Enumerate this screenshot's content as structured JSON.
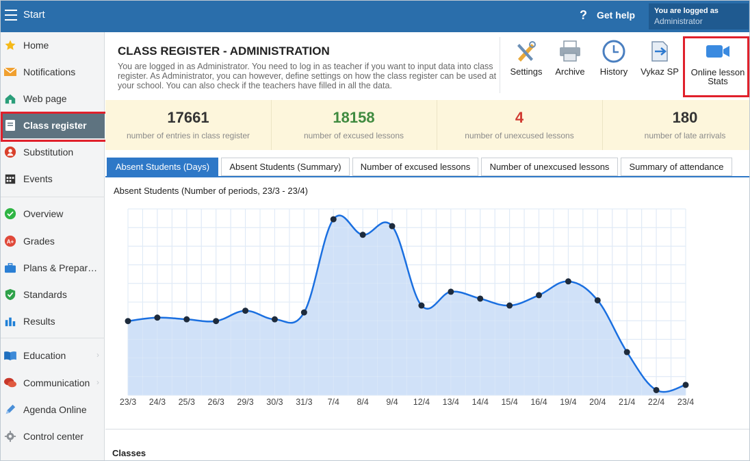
{
  "topbar": {
    "start_label": "Start",
    "help_label": "Get help",
    "logged_line1": "You are logged as",
    "logged_line2": "Administrator"
  },
  "sidebar": {
    "items": [
      {
        "label": "Home",
        "icon": "star-icon"
      },
      {
        "label": "Notifications",
        "icon": "envelope-icon"
      },
      {
        "label": "Web page",
        "icon": "house-icon"
      },
      {
        "label": "Class register",
        "icon": "register-book-icon",
        "active": true
      },
      {
        "label": "Substitution",
        "icon": "person-icon"
      },
      {
        "label": "Events",
        "icon": "calendar-icon"
      },
      {
        "label": "Overview",
        "icon": "check-circle-icon"
      },
      {
        "label": "Grades",
        "icon": "grades-icon"
      },
      {
        "label": "Plans & Prepar…",
        "icon": "briefcase-icon"
      },
      {
        "label": "Standards",
        "icon": "shield-check-icon"
      },
      {
        "label": "Results",
        "icon": "bar-chart-icon"
      },
      {
        "label": "Education",
        "icon": "book-icon"
      },
      {
        "label": "Communication",
        "icon": "chat-icon"
      },
      {
        "label": "Agenda Online",
        "icon": "pen-icon"
      },
      {
        "label": "Control center",
        "icon": "gear-icon"
      }
    ]
  },
  "header": {
    "title": "CLASS REGISTER - ADMINISTRATION",
    "description": "You are logged in as Administrator. You need to log in as teacher if you want to input data into class register. As Administrator, you can however, define settings on how the class register can be used at your school. You can also check if the teachers have filled in all the data."
  },
  "toolbar": {
    "settings": "Settings",
    "archive": "Archive",
    "history": "History",
    "vykaz": "Vykaz SP",
    "online_line1": "Online lesson",
    "online_line2": "Stats"
  },
  "stats": [
    {
      "value": "17661",
      "label": "number of entries in class register",
      "color": "#333333"
    },
    {
      "value": "18158",
      "label": "number of excused lessons",
      "color": "#3f8a3f"
    },
    {
      "value": "4",
      "label": "number of unexcused lessons",
      "color": "#d13b32"
    },
    {
      "value": "180",
      "label": "number of late arrivals",
      "color": "#333333"
    }
  ],
  "tabs": [
    {
      "label": "Absent Students (Days)",
      "active": true
    },
    {
      "label": "Absent Students (Summary)"
    },
    {
      "label": "Number of excused lessons"
    },
    {
      "label": "Number of unexcused lessons"
    },
    {
      "label": "Summary of attendance"
    }
  ],
  "chart_data": {
    "type": "area",
    "title": "Absent Students (Number of periods, 23/3 - 23/4)",
    "categories": [
      "23/3",
      "24/3",
      "25/3",
      "26/3",
      "29/3",
      "30/3",
      "31/3",
      "7/4",
      "8/4",
      "9/4",
      "12/4",
      "13/4",
      "14/4",
      "15/4",
      "16/4",
      "19/4",
      "20/4",
      "21/4",
      "22/4",
      "23/4"
    ],
    "values": [
      43,
      45,
      44,
      43,
      49,
      44,
      48,
      102,
      93,
      98,
      52,
      60,
      56,
      52,
      58,
      66,
      55,
      25,
      3,
      6
    ],
    "ylim": [
      0,
      108
    ],
    "grid": true,
    "line_color": "#1a6fe0",
    "fill_color": "#c8dcf7",
    "grid_color": "#d6e2f2"
  },
  "classes": {
    "title": "Classes"
  }
}
